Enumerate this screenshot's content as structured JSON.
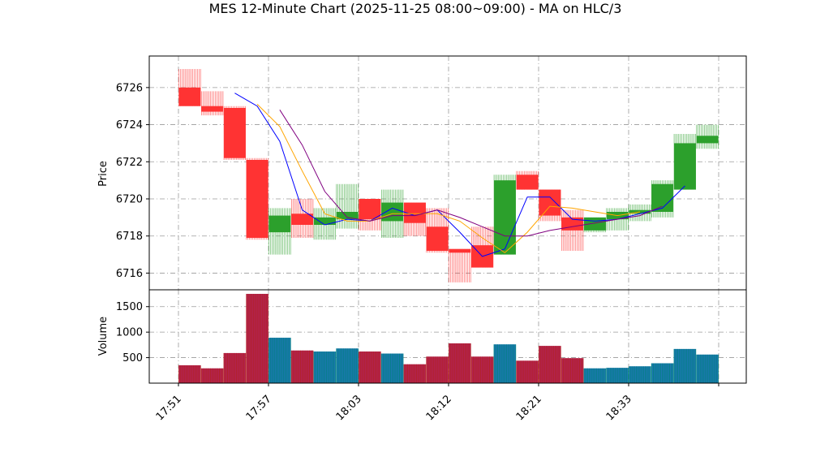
{
  "chart_data": {
    "type": "candlestick",
    "title": "MES 12-Minute Chart (2025-11-25 08:00~09:00) - MA on HLC/3",
    "price_panel": {
      "ylabel": "Price",
      "ylim": [
        6715.1,
        6727.7
      ],
      "yticks": [
        6716,
        6718,
        6720,
        6722,
        6724,
        6726
      ],
      "grid": true
    },
    "volume_panel": {
      "ylabel": "Volume",
      "ylim": [
        0,
        1830
      ],
      "yticks": [
        500,
        1000,
        1500
      ],
      "grid": true
    },
    "x_tick_labels": [
      "17:51",
      "17:57",
      "18:03",
      "18:12",
      "18:21",
      "18:33",
      ""
    ],
    "candles": [
      {
        "o": 6726.0,
        "h": 6727.0,
        "l": 6725.0,
        "c": 6725.0,
        "v": 350
      },
      {
        "o": 6725.0,
        "h": 6725.8,
        "l": 6724.5,
        "c": 6724.7,
        "v": 290
      },
      {
        "o": 6724.9,
        "h": 6725.0,
        "l": 6722.1,
        "c": 6722.2,
        "v": 590
      },
      {
        "o": 6722.1,
        "h": 6722.2,
        "l": 6717.8,
        "c": 6717.9,
        "v": 1750
      },
      {
        "o": 6718.2,
        "h": 6719.5,
        "l": 6717.0,
        "c": 6719.1,
        "v": 890
      },
      {
        "o": 6719.2,
        "h": 6720.0,
        "l": 6717.9,
        "c": 6718.6,
        "v": 640
      },
      {
        "o": 6718.6,
        "h": 6719.5,
        "l": 6717.8,
        "c": 6719.0,
        "v": 620
      },
      {
        "o": 6718.9,
        "h": 6720.8,
        "l": 6718.4,
        "c": 6719.3,
        "v": 680
      },
      {
        "o": 6720.0,
        "h": 6720.0,
        "l": 6718.3,
        "c": 6718.9,
        "v": 620
      },
      {
        "o": 6718.8,
        "h": 6720.5,
        "l": 6717.9,
        "c": 6719.8,
        "v": 580
      },
      {
        "o": 6719.8,
        "h": 6719.8,
        "l": 6718.0,
        "c": 6718.7,
        "v": 370
      },
      {
        "o": 6718.5,
        "h": 6719.5,
        "l": 6717.1,
        "c": 6717.2,
        "v": 520
      },
      {
        "o": 6717.3,
        "h": 6717.3,
        "l": 6715.5,
        "c": 6717.1,
        "v": 780
      },
      {
        "o": 6717.5,
        "h": 6718.5,
        "l": 6716.3,
        "c": 6716.3,
        "v": 520
      },
      {
        "o": 6717.0,
        "h": 6721.3,
        "l": 6717.0,
        "c": 6721.0,
        "v": 760
      },
      {
        "o": 6721.3,
        "h": 6721.5,
        "l": 6720.5,
        "c": 6720.5,
        "v": 440
      },
      {
        "o": 6720.5,
        "h": 6720.5,
        "l": 6718.8,
        "c": 6719.1,
        "v": 730
      },
      {
        "o": 6719.0,
        "h": 6719.4,
        "l": 6717.2,
        "c": 6718.3,
        "v": 490
      },
      {
        "o": 6718.3,
        "h": 6719.0,
        "l": 6718.2,
        "c": 6719.0,
        "v": 290
      },
      {
        "o": 6718.9,
        "h": 6719.5,
        "l": 6718.3,
        "c": 6719.3,
        "v": 300
      },
      {
        "o": 6719.2,
        "h": 6719.7,
        "l": 6718.8,
        "c": 6719.4,
        "v": 330
      },
      {
        "o": 6719.3,
        "h": 6721.0,
        "l": 6719.0,
        "c": 6720.8,
        "v": 390
      },
      {
        "o": 6720.5,
        "h": 6723.5,
        "l": 6720.5,
        "c": 6723.0,
        "v": 670
      },
      {
        "o": 6723.0,
        "h": 6724.0,
        "l": 6722.7,
        "c": 6723.4,
        "v": 560
      }
    ],
    "ma_lines": [
      {
        "color": "#0000ff",
        "values": [
          null,
          6725.7,
          6725.0,
          6723.1,
          6719.4,
          6718.6,
          6718.9,
          6718.8,
          6719.5,
          6719.1,
          6719.4,
          6718.2,
          6716.9,
          6717.3,
          6720.1,
          6720.1,
          6718.9,
          6718.8,
          6718.9,
          6719.2,
          6719.5,
          6720.7
        ]
      },
      {
        "color": "#ffa500",
        "values": [
          null,
          null,
          6725.1,
          6723.9,
          6721.5,
          6719.2,
          6718.8,
          6718.8,
          6719.2,
          6719.2,
          6719.2,
          6718.8,
          6717.9,
          6717.1,
          6718.2,
          6719.6,
          6719.5,
          6719.3,
          6719.1,
          6719.3
        ]
      },
      {
        "color": "#800080",
        "values": [
          null,
          null,
          null,
          6724.8,
          6722.9,
          6720.4,
          6719.0,
          6718.8,
          6719.1,
          6719.1,
          6719.4,
          6719.0,
          6718.5,
          6718.0,
          6718.0,
          6718.3,
          6718.5,
          6718.7,
          6718.9,
          6719.1,
          6719.6
        ]
      }
    ],
    "colors": {
      "up": "#2ca02c",
      "down": "#ff3333",
      "up_volume": "#008080",
      "down_volume": "#b22222",
      "grid": "#9a9a9a"
    }
  }
}
